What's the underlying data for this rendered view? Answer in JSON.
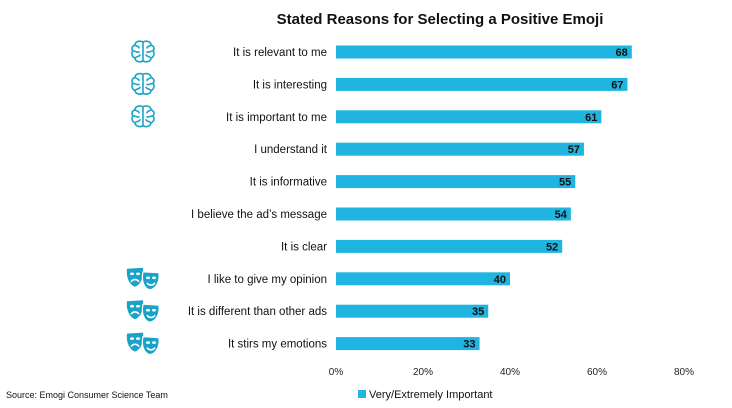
{
  "chart_data": {
    "type": "bar",
    "orientation": "horizontal",
    "title": "Stated Reasons for Selecting a Positive Emoji",
    "categories": [
      "It is relevant to me",
      "It is interesting",
      "It is important to me",
      "I understand it",
      "It is informative",
      "I believe the ad’s message",
      "It is clear",
      "I like to give my opinion",
      "It is different than other ads",
      "It stirs my emotions"
    ],
    "series": [
      {
        "name": "Very/Extremely Important",
        "color": "#1fb5e0",
        "values": [
          68,
          67,
          61,
          57,
          55,
          54,
          52,
          40,
          35,
          33
        ]
      }
    ],
    "xlim": [
      0,
      80
    ],
    "xticks": [
      "0%",
      "20%",
      "40%",
      "60%",
      "80%"
    ],
    "xtick_values": [
      0,
      20,
      40,
      60,
      80
    ],
    "grid": false,
    "legend_position": "bottom-center",
    "row_icons": [
      "brain-icon",
      "brain-icon",
      "brain-icon",
      "",
      "",
      "",
      "",
      "theater-masks-icon",
      "theater-masks-icon",
      "theater-masks-icon"
    ]
  },
  "source": "Source: Emogi Consumer Science Team"
}
